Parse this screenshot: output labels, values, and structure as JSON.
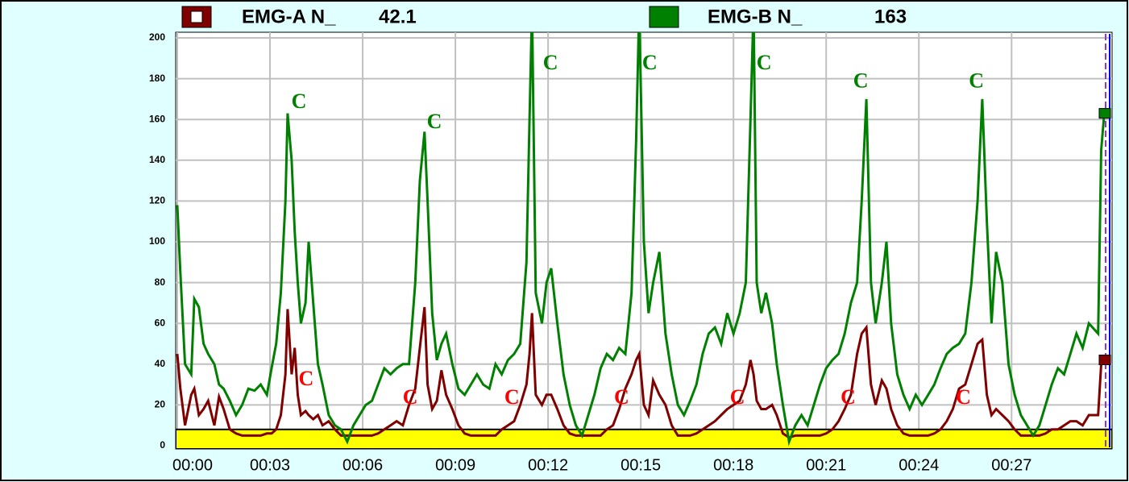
{
  "chart_data": {
    "type": "line",
    "x": [
      0,
      0.1,
      0.25,
      0.45,
      0.55,
      0.7,
      0.85,
      1.0,
      1.2,
      1.35,
      1.5,
      1.7,
      1.9,
      2.1,
      2.3,
      2.5,
      2.7,
      2.9,
      3.05,
      3.2,
      3.35,
      3.5,
      3.57,
      3.7,
      3.8,
      3.9,
      4.0,
      4.15,
      4.25,
      4.4,
      4.55,
      4.7,
      4.9,
      5.1,
      5.3,
      5.5,
      5.7,
      5.9,
      6.1,
      6.3,
      6.5,
      6.7,
      6.9,
      7.1,
      7.3,
      7.5,
      7.7,
      7.85,
      8.0,
      8.1,
      8.25,
      8.4,
      8.55,
      8.7,
      8.9,
      9.1,
      9.3,
      9.5,
      9.7,
      9.9,
      10.1,
      10.3,
      10.5,
      10.7,
      10.9,
      11.1,
      11.3,
      11.4,
      11.48,
      11.6,
      11.8,
      11.95,
      12.1,
      12.3,
      12.5,
      12.7,
      12.9,
      13.1,
      13.3,
      13.5,
      13.7,
      13.9,
      14.1,
      14.3,
      14.5,
      14.7,
      14.85,
      14.95,
      15.1,
      15.25,
      15.4,
      15.6,
      15.8,
      16.0,
      16.2,
      16.4,
      16.6,
      16.8,
      17.0,
      17.2,
      17.4,
      17.6,
      17.8,
      18.0,
      18.2,
      18.4,
      18.55,
      18.65,
      18.75,
      18.9,
      19.05,
      19.25,
      19.4,
      19.6,
      19.8,
      20.0,
      20.2,
      20.4,
      20.6,
      20.8,
      21.0,
      21.2,
      21.4,
      21.6,
      21.8,
      22.0,
      22.15,
      22.3,
      22.45,
      22.6,
      22.8,
      22.95,
      23.1,
      23.3,
      23.5,
      23.7,
      23.9,
      24.1,
      24.3,
      24.5,
      24.7,
      24.9,
      25.1,
      25.3,
      25.5,
      25.7,
      25.9,
      26.05,
      26.2,
      26.35,
      26.5,
      26.7,
      26.9,
      27.1,
      27.3,
      27.5,
      27.7,
      27.9,
      28.1,
      28.3,
      28.5,
      28.7,
      28.9,
      29.1,
      29.3,
      29.5,
      29.8,
      29.9,
      30.0
    ],
    "series": [
      {
        "name": "EMG-A N_",
        "current": 42.1,
        "color": "#800000",
        "values": [
          45,
          28,
          10,
          25,
          28,
          15,
          18,
          22,
          10,
          24,
          18,
          8,
          6,
          5,
          5,
          5,
          5,
          6,
          6,
          8,
          15,
          35,
          67,
          35,
          48,
          25,
          15,
          17,
          15,
          13,
          15,
          10,
          12,
          8,
          5,
          5,
          5,
          5,
          5,
          5,
          6,
          8,
          10,
          12,
          10,
          20,
          28,
          48,
          68,
          30,
          18,
          22,
          37,
          25,
          18,
          10,
          6,
          5,
          5,
          5,
          5,
          5,
          8,
          10,
          12,
          20,
          30,
          45,
          65,
          25,
          20,
          25,
          25,
          18,
          10,
          6,
          5,
          5,
          5,
          5,
          5,
          8,
          10,
          18,
          28,
          35,
          42,
          45,
          20,
          15,
          32,
          25,
          20,
          10,
          5,
          5,
          5,
          6,
          8,
          10,
          12,
          15,
          18,
          20,
          22,
          30,
          42,
          35,
          22,
          18,
          18,
          20,
          15,
          6,
          4,
          5,
          5,
          5,
          5,
          5,
          6,
          8,
          12,
          18,
          25,
          45,
          55,
          58,
          30,
          20,
          32,
          28,
          18,
          10,
          6,
          5,
          5,
          5,
          5,
          6,
          8,
          12,
          18,
          28,
          30,
          40,
          50,
          52,
          25,
          15,
          18,
          15,
          12,
          8,
          5,
          5,
          5,
          5,
          6,
          8,
          8,
          10,
          12,
          12,
          10,
          15,
          15,
          40,
          42.1
        ]
      },
      {
        "name": "EMG-B N_",
        "current": 163,
        "color": "#008000",
        "values": [
          118,
          85,
          40,
          35,
          72,
          68,
          50,
          45,
          40,
          30,
          28,
          22,
          15,
          20,
          28,
          27,
          30,
          25,
          38,
          50,
          75,
          120,
          163,
          140,
          105,
          80,
          60,
          70,
          100,
          70,
          40,
          30,
          15,
          10,
          8,
          2,
          10,
          15,
          20,
          22,
          30,
          38,
          35,
          38,
          40,
          40,
          80,
          130,
          154,
          120,
          65,
          42,
          50,
          55,
          40,
          28,
          25,
          30,
          35,
          30,
          28,
          40,
          35,
          42,
          45,
          50,
          90,
          160,
          215,
          75,
          60,
          80,
          87,
          60,
          35,
          20,
          10,
          5,
          15,
          25,
          38,
          45,
          42,
          48,
          45,
          75,
          150,
          215,
          100,
          65,
          80,
          95,
          55,
          35,
          20,
          15,
          22,
          30,
          45,
          55,
          58,
          50,
          65,
          55,
          65,
          80,
          160,
          215,
          80,
          65,
          75,
          60,
          40,
          20,
          2,
          10,
          15,
          10,
          20,
          30,
          38,
          42,
          45,
          55,
          70,
          80,
          120,
          170,
          80,
          60,
          80,
          100,
          60,
          35,
          25,
          18,
          25,
          20,
          25,
          30,
          38,
          45,
          48,
          50,
          55,
          80,
          120,
          170,
          110,
          60,
          95,
          80,
          40,
          25,
          15,
          10,
          5,
          10,
          20,
          30,
          38,
          35,
          45,
          55,
          48,
          60,
          55,
          145,
          163
        ]
      }
    ],
    "xlim": [
      0,
      30.2
    ],
    "ylim": [
      0,
      200
    ],
    "xticks": [
      {
        "value": 0,
        "label": "00:00"
      },
      {
        "value": 3,
        "label": "00:03"
      },
      {
        "value": 6,
        "label": "00:06"
      },
      {
        "value": 9,
        "label": "00:09"
      },
      {
        "value": 12,
        "label": "00:12"
      },
      {
        "value": 15,
        "label": "00:15"
      },
      {
        "value": 18,
        "label": "00:18"
      },
      {
        "value": 21,
        "label": "00:21"
      },
      {
        "value": 24,
        "label": "00:24"
      },
      {
        "value": 27,
        "label": "00:27"
      }
    ],
    "yticks": [
      0,
      20,
      40,
      60,
      80,
      100,
      120,
      140,
      160,
      180,
      200
    ],
    "grid": true,
    "threshold_band": {
      "ylim": [
        0,
        8
      ],
      "color": "#ffff00"
    },
    "annotations": [
      {
        "text": "C",
        "x": 3.94,
        "y": 168,
        "color": "#008000"
      },
      {
        "text": "C",
        "x": 8.32,
        "y": 158,
        "color": "#008000"
      },
      {
        "text": "C",
        "x": 12.08,
        "y": 187,
        "color": "#008000"
      },
      {
        "text": "C",
        "x": 15.29,
        "y": 187,
        "color": "#008000"
      },
      {
        "text": "C",
        "x": 18.99,
        "y": 187,
        "color": "#008000"
      },
      {
        "text": "C",
        "x": 22.12,
        "y": 178,
        "color": "#008000"
      },
      {
        "text": "C",
        "x": 25.86,
        "y": 178,
        "color": "#008000"
      },
      {
        "text": "C",
        "x": 4.17,
        "y": 32,
        "color": "#ff0000"
      },
      {
        "text": "C",
        "x": 7.54,
        "y": 23,
        "color": "#ff0000"
      },
      {
        "text": "C",
        "x": 10.83,
        "y": 23,
        "color": "#ff0000"
      },
      {
        "text": "C",
        "x": 14.38,
        "y": 23,
        "color": "#ff0000"
      },
      {
        "text": "C",
        "x": 18.13,
        "y": 23,
        "color": "#ff0000"
      },
      {
        "text": "C",
        "x": 21.71,
        "y": 23,
        "color": "#ff0000"
      },
      {
        "text": "C",
        "x": 25.44,
        "y": 23,
        "color": "#ff0000"
      }
    ]
  }
}
